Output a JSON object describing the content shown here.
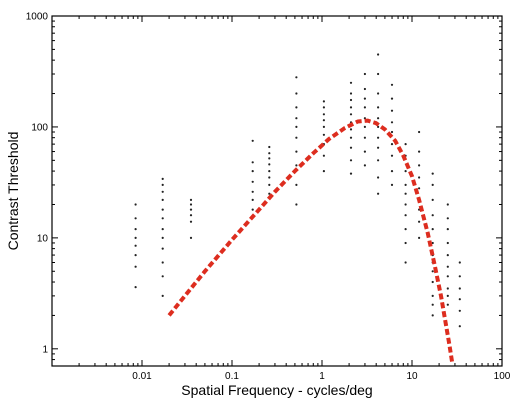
{
  "chart_data": {
    "type": "scatter",
    "xlabel": "Spatial Frequency - cycles/deg",
    "ylabel": "Contrast Threshold",
    "xscale": "log",
    "yscale": "log",
    "xlim": [
      0.001,
      100
    ],
    "ylim": [
      0.7,
      1000
    ],
    "x_ticks": [
      {
        "value": 0.01,
        "label": "0.01"
      },
      {
        "value": 0.1,
        "label": "0.1"
      },
      {
        "value": 1,
        "label": "1"
      },
      {
        "value": 10,
        "label": "10"
      },
      {
        "value": 100,
        "label": "100"
      }
    ],
    "y_ticks": [
      {
        "value": 1,
        "label": "1"
      },
      {
        "value": 10,
        "label": "10"
      },
      {
        "value": 100,
        "label": "100"
      },
      {
        "value": 1000,
        "label": "1000"
      }
    ],
    "grid": false,
    "series": [
      {
        "style": "points",
        "color": "#222222",
        "points": [
          [
            0.0085,
            3.6
          ],
          [
            0.0085,
            5.5
          ],
          [
            0.0085,
            7
          ],
          [
            0.0085,
            8.5
          ],
          [
            0.0085,
            10
          ],
          [
            0.0085,
            12
          ],
          [
            0.0085,
            15
          ],
          [
            0.0085,
            20
          ],
          [
            0.017,
            3
          ],
          [
            0.017,
            4.5
          ],
          [
            0.017,
            6
          ],
          [
            0.017,
            8
          ],
          [
            0.017,
            10
          ],
          [
            0.017,
            12
          ],
          [
            0.017,
            15
          ],
          [
            0.017,
            18
          ],
          [
            0.017,
            22
          ],
          [
            0.017,
            26
          ],
          [
            0.017,
            30
          ],
          [
            0.017,
            34
          ],
          [
            0.035,
            10
          ],
          [
            0.035,
            14
          ],
          [
            0.035,
            16
          ],
          [
            0.035,
            18
          ],
          [
            0.035,
            20
          ],
          [
            0.035,
            22
          ],
          [
            0.17,
            18
          ],
          [
            0.17,
            22
          ],
          [
            0.17,
            26
          ],
          [
            0.17,
            32
          ],
          [
            0.17,
            40
          ],
          [
            0.17,
            48
          ],
          [
            0.17,
            75
          ],
          [
            0.26,
            25
          ],
          [
            0.26,
            30
          ],
          [
            0.26,
            35
          ],
          [
            0.26,
            40
          ],
          [
            0.26,
            46
          ],
          [
            0.26,
            52
          ],
          [
            0.26,
            58
          ],
          [
            0.26,
            66
          ],
          [
            0.52,
            20
          ],
          [
            0.52,
            30
          ],
          [
            0.52,
            45
          ],
          [
            0.52,
            60
          ],
          [
            0.52,
            80
          ],
          [
            0.52,
            100
          ],
          [
            0.52,
            120
          ],
          [
            0.52,
            150
          ],
          [
            0.52,
            200
          ],
          [
            0.52,
            280
          ],
          [
            1.05,
            40
          ],
          [
            1.05,
            55
          ],
          [
            1.05,
            70
          ],
          [
            1.05,
            85
          ],
          [
            1.05,
            100
          ],
          [
            1.05,
            115
          ],
          [
            1.05,
            130
          ],
          [
            1.05,
            150
          ],
          [
            1.05,
            170
          ],
          [
            2.1,
            38
          ],
          [
            2.1,
            50
          ],
          [
            2.1,
            65
          ],
          [
            2.1,
            80
          ],
          [
            2.1,
            95
          ],
          [
            2.1,
            110
          ],
          [
            2.1,
            130
          ],
          [
            2.1,
            150
          ],
          [
            2.1,
            175
          ],
          [
            2.1,
            200
          ],
          [
            2.1,
            250
          ],
          [
            3,
            45
          ],
          [
            3,
            60
          ],
          [
            3,
            80
          ],
          [
            3,
            100
          ],
          [
            3,
            120
          ],
          [
            3,
            150
          ],
          [
            3,
            180
          ],
          [
            3,
            220
          ],
          [
            3,
            300
          ],
          [
            4.2,
            25
          ],
          [
            4.2,
            35
          ],
          [
            4.2,
            50
          ],
          [
            4.2,
            65
          ],
          [
            4.2,
            80
          ],
          [
            4.2,
            100
          ],
          [
            4.2,
            120
          ],
          [
            4.2,
            150
          ],
          [
            4.2,
            200
          ],
          [
            4.2,
            300
          ],
          [
            4.2,
            450
          ],
          [
            6,
            30
          ],
          [
            6,
            40
          ],
          [
            6,
            55
          ],
          [
            6,
            70
          ],
          [
            6,
            90
          ],
          [
            6,
            110
          ],
          [
            6,
            140
          ],
          [
            6,
            180
          ],
          [
            6,
            240
          ],
          [
            8.5,
            6
          ],
          [
            8.5,
            9
          ],
          [
            8.5,
            12
          ],
          [
            8.5,
            16
          ],
          [
            8.5,
            20
          ],
          [
            8.5,
            25
          ],
          [
            8.5,
            30
          ],
          [
            8.5,
            40
          ],
          [
            8.5,
            55
          ],
          [
            8.5,
            70
          ],
          [
            12,
            10
          ],
          [
            12,
            14
          ],
          [
            12,
            18
          ],
          [
            12,
            22
          ],
          [
            12,
            28
          ],
          [
            12,
            35
          ],
          [
            12,
            45
          ],
          [
            12,
            60
          ],
          [
            12,
            90
          ],
          [
            17,
            2
          ],
          [
            17,
            2.5
          ],
          [
            17,
            3
          ],
          [
            17,
            4
          ],
          [
            17,
            5
          ],
          [
            17,
            6
          ],
          [
            17,
            7
          ],
          [
            17,
            9
          ],
          [
            17,
            12
          ],
          [
            17,
            16
          ],
          [
            17,
            22
          ],
          [
            17,
            30
          ],
          [
            17,
            38
          ],
          [
            25,
            2.5
          ],
          [
            25,
            3
          ],
          [
            25,
            3.5
          ],
          [
            25,
            4.5
          ],
          [
            25,
            5.5
          ],
          [
            25,
            7
          ],
          [
            25,
            9
          ],
          [
            25,
            12
          ],
          [
            25,
            15
          ],
          [
            25,
            20
          ],
          [
            34,
            1.6
          ],
          [
            34,
            2.2
          ],
          [
            34,
            2.8
          ],
          [
            34,
            3.5
          ],
          [
            34,
            4.5
          ],
          [
            34,
            6
          ]
        ]
      },
      {
        "style": "dashed-line",
        "color": "#dd2d1f",
        "x": [
          0.02,
          0.03,
          0.05,
          0.1,
          0.2,
          0.3,
          0.5,
          0.8,
          1.2,
          1.8,
          2.5,
          3.2,
          4,
          5,
          6.5,
          8,
          10,
          12,
          15,
          18,
          21,
          24,
          26,
          28
        ],
        "y": [
          2,
          3,
          5,
          9.6,
          18,
          26,
          40,
          58,
          78,
          98,
          112,
          114,
          108,
          95,
          75,
          55,
          36,
          22,
          11,
          5.5,
          3,
          1.6,
          1.1,
          0.75
        ]
      }
    ]
  }
}
